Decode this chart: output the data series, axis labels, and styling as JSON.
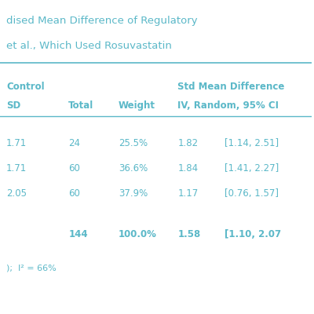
{
  "title_line1": "dised Mean Difference of Regulatory",
  "title_line2": "et al., Which Used Rosuvastatin",
  "title_color": "#5bb8c8",
  "rows": [
    {
      "sd": "1.71",
      "total": "24",
      "weight": "25.5%",
      "smd": "1.82",
      "ci": "[1.14, 2.51]"
    },
    {
      "sd": "1.71",
      "total": "60",
      "weight": "36.6%",
      "smd": "1.84",
      "ci": "[1.41, 2.27]"
    },
    {
      "sd": "2.05",
      "total": "60",
      "weight": "37.9%",
      "smd": "1.17",
      "ci": "[0.76, 1.57]"
    }
  ],
  "total_row": {
    "total": "144",
    "weight": "100.0%",
    "smd": "1.58",
    "ci": "[1.10, 2.07"
  },
  "footer": ");  I² = 66%",
  "data_color": "#5bb8c8",
  "header_color": "#5bb8c8",
  "background": "#ffffff",
  "line_color": "#5bb8c8"
}
